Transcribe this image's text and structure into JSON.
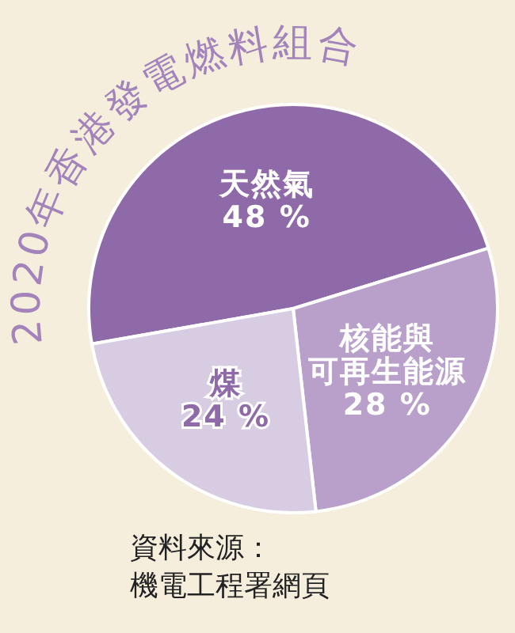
{
  "chart_data": {
    "type": "pie",
    "title": "2020年香港發電燃料組合",
    "categories": [
      "天然氣",
      "核能與可再生能源",
      "煤"
    ],
    "values": [
      48,
      28,
      24
    ],
    "colors": [
      "#8f6aa8",
      "#b9a0cb",
      "#d8cce3"
    ],
    "value_labels": [
      "48 %",
      "28 %",
      "24 %"
    ],
    "annotations": [
      "資料來源：",
      "機電工程署網頁"
    ]
  }
}
